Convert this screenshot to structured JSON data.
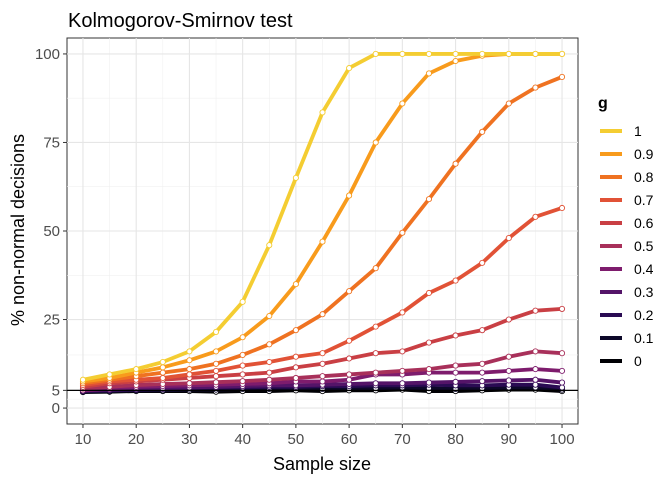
{
  "chart_data": {
    "type": "line",
    "title": "Kolmogorov-Smirnov test",
    "xlabel": "Sample size",
    "ylabel": "% non-normal decisions",
    "x": [
      10,
      15,
      20,
      25,
      30,
      35,
      40,
      45,
      50,
      55,
      60,
      65,
      70,
      75,
      80,
      85,
      90,
      95,
      100
    ],
    "xticks": [
      10,
      20,
      30,
      40,
      50,
      60,
      70,
      80,
      90,
      100
    ],
    "yticks": [
      0,
      5,
      25,
      50,
      75,
      100
    ],
    "xlim": [
      7,
      103
    ],
    "ylim": [
      -4.5,
      104.5
    ],
    "reference_line": 5,
    "grid": true,
    "legend": {
      "title": "g",
      "placement": "right"
    },
    "series": [
      {
        "name": "1",
        "color": "#f4cd32",
        "values": [
          8,
          9.5,
          11,
          13,
          16,
          21.5,
          30,
          46,
          65,
          83.5,
          96,
          100,
          100,
          100,
          100,
          100,
          100,
          100,
          100
        ]
      },
      {
        "name": "0.9",
        "color": "#f89b1c",
        "values": [
          7.5,
          8.5,
          10,
          11.5,
          13.5,
          16,
          20,
          26,
          35,
          47,
          60,
          75,
          86,
          94.5,
          98,
          99.5,
          100,
          100,
          100
        ]
      },
      {
        "name": "0.8",
        "color": "#ef7221",
        "values": [
          7,
          8,
          9,
          10,
          11,
          12.5,
          15,
          18,
          22,
          26.5,
          33,
          39.5,
          49.5,
          59,
          69,
          78,
          86,
          90.5,
          93.5
        ]
      },
      {
        "name": "0.7",
        "color": "#e15236",
        "values": [
          6.5,
          7.5,
          8,
          8.5,
          9.5,
          10.5,
          12,
          13,
          14.5,
          15.5,
          19,
          23,
          27,
          32.5,
          36,
          41,
          48,
          54,
          56.5
        ]
      },
      {
        "name": "0.6",
        "color": "#c93f44",
        "values": [
          6,
          7,
          7.5,
          8,
          8.5,
          9,
          9.5,
          10,
          11.5,
          12.5,
          14,
          15.5,
          16,
          18.5,
          20.5,
          22,
          25,
          27.5,
          28
        ]
      },
      {
        "name": "0.5",
        "color": "#a8305a",
        "values": [
          5.5,
          6,
          6.5,
          6.8,
          7,
          7.3,
          7.6,
          8,
          8.5,
          9,
          9.5,
          10,
          10.5,
          11,
          12,
          12.5,
          14.5,
          16,
          15.5
        ]
      },
      {
        "name": "0.4",
        "color": "#7e1c6d",
        "values": [
          5,
          5.5,
          6,
          6.2,
          6.4,
          6.6,
          6.8,
          7,
          7.5,
          7.5,
          8,
          9.5,
          9.5,
          10,
          10,
          10,
          10.5,
          11,
          10.5
        ]
      },
      {
        "name": "0.3",
        "color": "#541468",
        "values": [
          5,
          5.2,
          5.5,
          5.6,
          5.8,
          6,
          6.2,
          6.4,
          6.4,
          6.6,
          6.8,
          7,
          7,
          7.2,
          7.4,
          7.6,
          7.8,
          8,
          7.2
        ]
      },
      {
        "name": "0.2",
        "color": "#2a0b53",
        "values": [
          4.8,
          5,
          5.2,
          5.4,
          5.6,
          5.8,
          5.8,
          6,
          6,
          6.2,
          6.2,
          6.4,
          6.4,
          6.6,
          6.4,
          6.4,
          6.6,
          6.6,
          5.8
        ]
      },
      {
        "name": "0.1",
        "color": "#0d0829",
        "values": [
          4.6,
          4.8,
          5,
          5,
          5.2,
          5.2,
          5.4,
          5.4,
          5.6,
          5.4,
          5.6,
          5.6,
          5.8,
          5.6,
          5.4,
          5.6,
          5.8,
          5.8,
          5.2
        ]
      },
      {
        "name": "0",
        "color": "#000004",
        "values": [
          4.5,
          4.6,
          4.8,
          4.8,
          4.8,
          4.6,
          4.8,
          4.8,
          5,
          4.8,
          5,
          5,
          5.2,
          4.8,
          4.8,
          5,
          5.2,
          5.2,
          4.8
        ]
      }
    ]
  }
}
